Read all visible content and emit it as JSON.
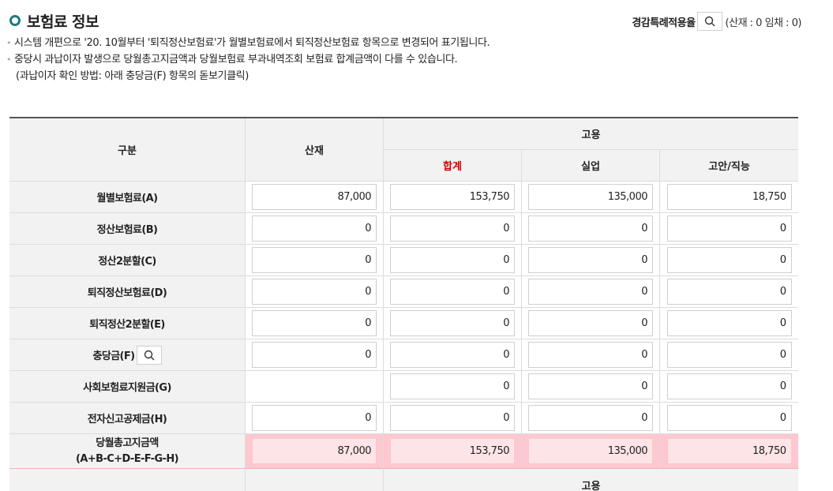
{
  "section": {
    "title": "보험료 정보",
    "special_label": "경감특례적용율",
    "special_stat": "(산재 : 0 임채 : 0)"
  },
  "notes": [
    "시스템 개편으로 '20. 10월부터 '퇴직정산보험료'가 월별보험료에서 퇴직정산보험료 항목으로 변경되어 표기됩니다.",
    "중당시 과납이자 발생으로 당월총고지금액과 당월보험료 부과내역조회 보험료 합계금액이 다를 수 있습니다."
  ],
  "note_sub": "(과납이자 확인 방법: 아래 충당금(F) 항목의 돋보기클릭)",
  "table": {
    "header": {
      "category": "구분",
      "sanjae": "산재",
      "goyong": "고용",
      "total": "합계",
      "unemployment": "실업",
      "stability": "고안/직능"
    },
    "rows": [
      {
        "label": "월별보험료(A)",
        "values": [
          "87,000",
          "153,750",
          "135,000",
          "18,750"
        ]
      },
      {
        "label": "정산보험료(B)",
        "values": [
          "0",
          "0",
          "0",
          "0"
        ]
      },
      {
        "label": "정산2분할(C)",
        "values": [
          "0",
          "0",
          "0",
          "0"
        ]
      },
      {
        "label": "퇴직정산보험료(D)",
        "values": [
          "0",
          "0",
          "0",
          "0"
        ]
      },
      {
        "label": "퇴직정산2분할(E)",
        "values": [
          "0",
          "0",
          "0",
          "0"
        ]
      },
      {
        "label": "충당금(F)",
        "values": [
          "0",
          "0",
          "0",
          "0"
        ]
      },
      {
        "label": "사회보험료지원금(G)",
        "values": [
          "",
          "0",
          "0",
          "0"
        ]
      },
      {
        "label": "전자신고공제금(H)",
        "values": [
          "0",
          "0",
          "0",
          "0"
        ]
      }
    ],
    "total_row": {
      "label_line1": "당월총고지금액",
      "label_line2": "(A+B-C+D-E-F-G-H)",
      "values": [
        "87,000",
        "153,750",
        "135,000",
        "18,750"
      ]
    },
    "bottom_header": {
      "goyong": "고용"
    }
  },
  "icons": {
    "search": "search-icon"
  },
  "colors": {
    "accent": "#1f7a7f",
    "total_header": "#d40000",
    "total_row_bg": "#ffc7cf"
  }
}
